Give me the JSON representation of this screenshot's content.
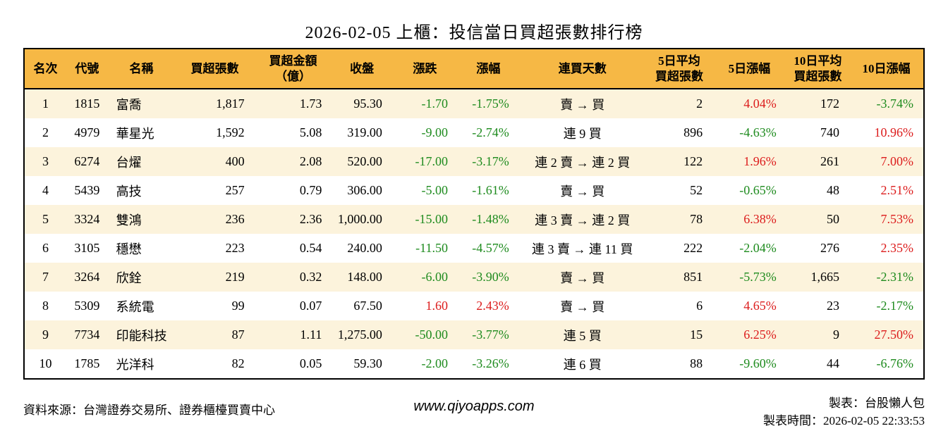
{
  "title": "2026-02-05 上櫃：投信當日買超張數排行榜",
  "colors": {
    "header_bg": "#F6B845",
    "stripe_bg": "#FCF3DC",
    "up_red": "#DC1C1C",
    "down_green": "#1E8B1E",
    "border": "#000000"
  },
  "table": {
    "headers": [
      "名次",
      "代號",
      "名稱",
      "買超張數",
      "買超金額\n（億）",
      "收盤",
      "漲跌",
      "漲幅",
      "連買天數",
      "5日平均\n買超張數",
      "5日漲幅",
      "10日平均\n買超張數",
      "10日漲幅"
    ],
    "rows": [
      {
        "cells": [
          "1",
          "1815",
          "富喬",
          "1,817",
          "1.73",
          "95.30",
          "-1.70",
          "-1.75%",
          "賣 → 買",
          "2",
          "4.04%",
          "172",
          "-3.74%"
        ]
      },
      {
        "cells": [
          "2",
          "4979",
          "華星光",
          "1,592",
          "5.08",
          "319.00",
          "-9.00",
          "-2.74%",
          "連 9 買",
          "896",
          "-4.63%",
          "740",
          "10.96%"
        ]
      },
      {
        "cells": [
          "3",
          "6274",
          "台燿",
          "400",
          "2.08",
          "520.00",
          "-17.00",
          "-3.17%",
          "連 2 賣 → 連 2 買",
          "122",
          "1.96%",
          "261",
          "7.00%"
        ]
      },
      {
        "cells": [
          "4",
          "5439",
          "高技",
          "257",
          "0.79",
          "306.00",
          "-5.00",
          "-1.61%",
          "賣 → 買",
          "52",
          "-0.65%",
          "48",
          "2.51%"
        ]
      },
      {
        "cells": [
          "5",
          "3324",
          "雙鴻",
          "236",
          "2.36",
          "1,000.00",
          "-15.00",
          "-1.48%",
          "連 3 賣 → 連 2 買",
          "78",
          "6.38%",
          "50",
          "7.53%"
        ]
      },
      {
        "cells": [
          "6",
          "3105",
          "穩懋",
          "223",
          "0.54",
          "240.00",
          "-11.50",
          "-4.57%",
          "連 3 賣 → 連 11 買",
          "222",
          "-2.04%",
          "276",
          "2.35%"
        ]
      },
      {
        "cells": [
          "7",
          "3264",
          "欣銓",
          "219",
          "0.32",
          "148.00",
          "-6.00",
          "-3.90%",
          "賣 → 買",
          "851",
          "-5.73%",
          "1,665",
          "-2.31%"
        ]
      },
      {
        "cells": [
          "8",
          "5309",
          "系統電",
          "99",
          "0.07",
          "67.50",
          "1.60",
          "2.43%",
          "賣 → 買",
          "6",
          "4.65%",
          "23",
          "-2.17%"
        ]
      },
      {
        "cells": [
          "9",
          "7734",
          "印能科技",
          "87",
          "1.11",
          "1,275.00",
          "-50.00",
          "-3.77%",
          "連 5 買",
          "15",
          "6.25%",
          "9",
          "27.50%"
        ]
      },
      {
        "cells": [
          "10",
          "1785",
          "光洋科",
          "82",
          "0.05",
          "59.30",
          "-2.00",
          "-3.26%",
          "連 6 買",
          "88",
          "-9.60%",
          "44",
          "-6.76%"
        ]
      }
    ]
  },
  "footer": {
    "source": "資料來源：台灣證券交易所、證券櫃檯買賣中心",
    "website": "www.qiyoapps.com",
    "maker": "製表：台股懶人包",
    "timestamp": "製表時間：2026-02-05 22:33:53"
  }
}
